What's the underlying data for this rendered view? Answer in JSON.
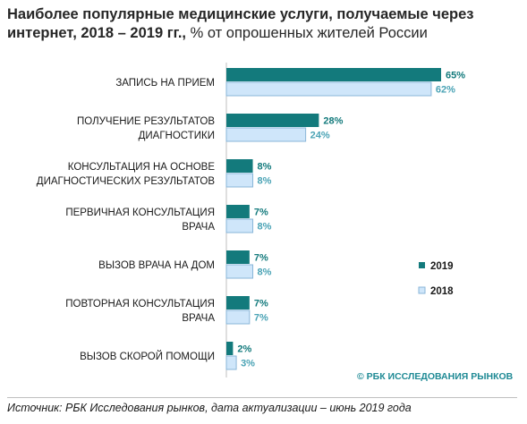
{
  "title": {
    "bold": "Наиболее популярные медицинские услуги, получаемые через интернет, 2018 – 2019 гг.,",
    "regular": " % от опрошенных жителей России"
  },
  "source": "Источник: РБК Исследования рынков, дата актуализации – июнь 2019 года",
  "brand": "© РБК ИССЛЕДОВАНИЯ РЫНКОВ",
  "colors": {
    "s2019": "#137a7c",
    "s2018": "#cfe6fa",
    "s2018_border": "#8ab6d8",
    "label2019": "#137a7c",
    "label2018": "#4aa3b5"
  },
  "chart_data": {
    "type": "bar",
    "orientation": "horizontal",
    "categories": [
      [
        "ЗАПИСЬ НА ПРИЕМ"
      ],
      [
        "ПОЛУЧЕНИЕ РЕЗУЛЬТАТОВ",
        "ДИАГНОСТИКИ"
      ],
      [
        "КОНСУЛЬТАЦИЯ НА ОСНОВЕ",
        "ДИАГНОСТИЧЕСКИХ РЕЗУЛЬТАТОВ"
      ],
      [
        "ПЕРВИЧНАЯ КОНСУЛЬТАЦИЯ",
        "ВРАЧА"
      ],
      [
        "ВЫЗОВ ВРАЧА НА ДОМ"
      ],
      [
        "ПОВТОРНАЯ КОНСУЛЬТАЦИЯ",
        "ВРАЧА"
      ],
      [
        "ВЫЗОВ СКОРОЙ ПОМОЩИ"
      ]
    ],
    "series": [
      {
        "name": "2019",
        "values": [
          65,
          28,
          8,
          7,
          7,
          7,
          2
        ]
      },
      {
        "name": "2018",
        "values": [
          62,
          24,
          8,
          8,
          8,
          7,
          3
        ]
      }
    ],
    "value_suffix": "%",
    "xlim": [
      0,
      70
    ],
    "legend_position": "right",
    "grid": false
  }
}
